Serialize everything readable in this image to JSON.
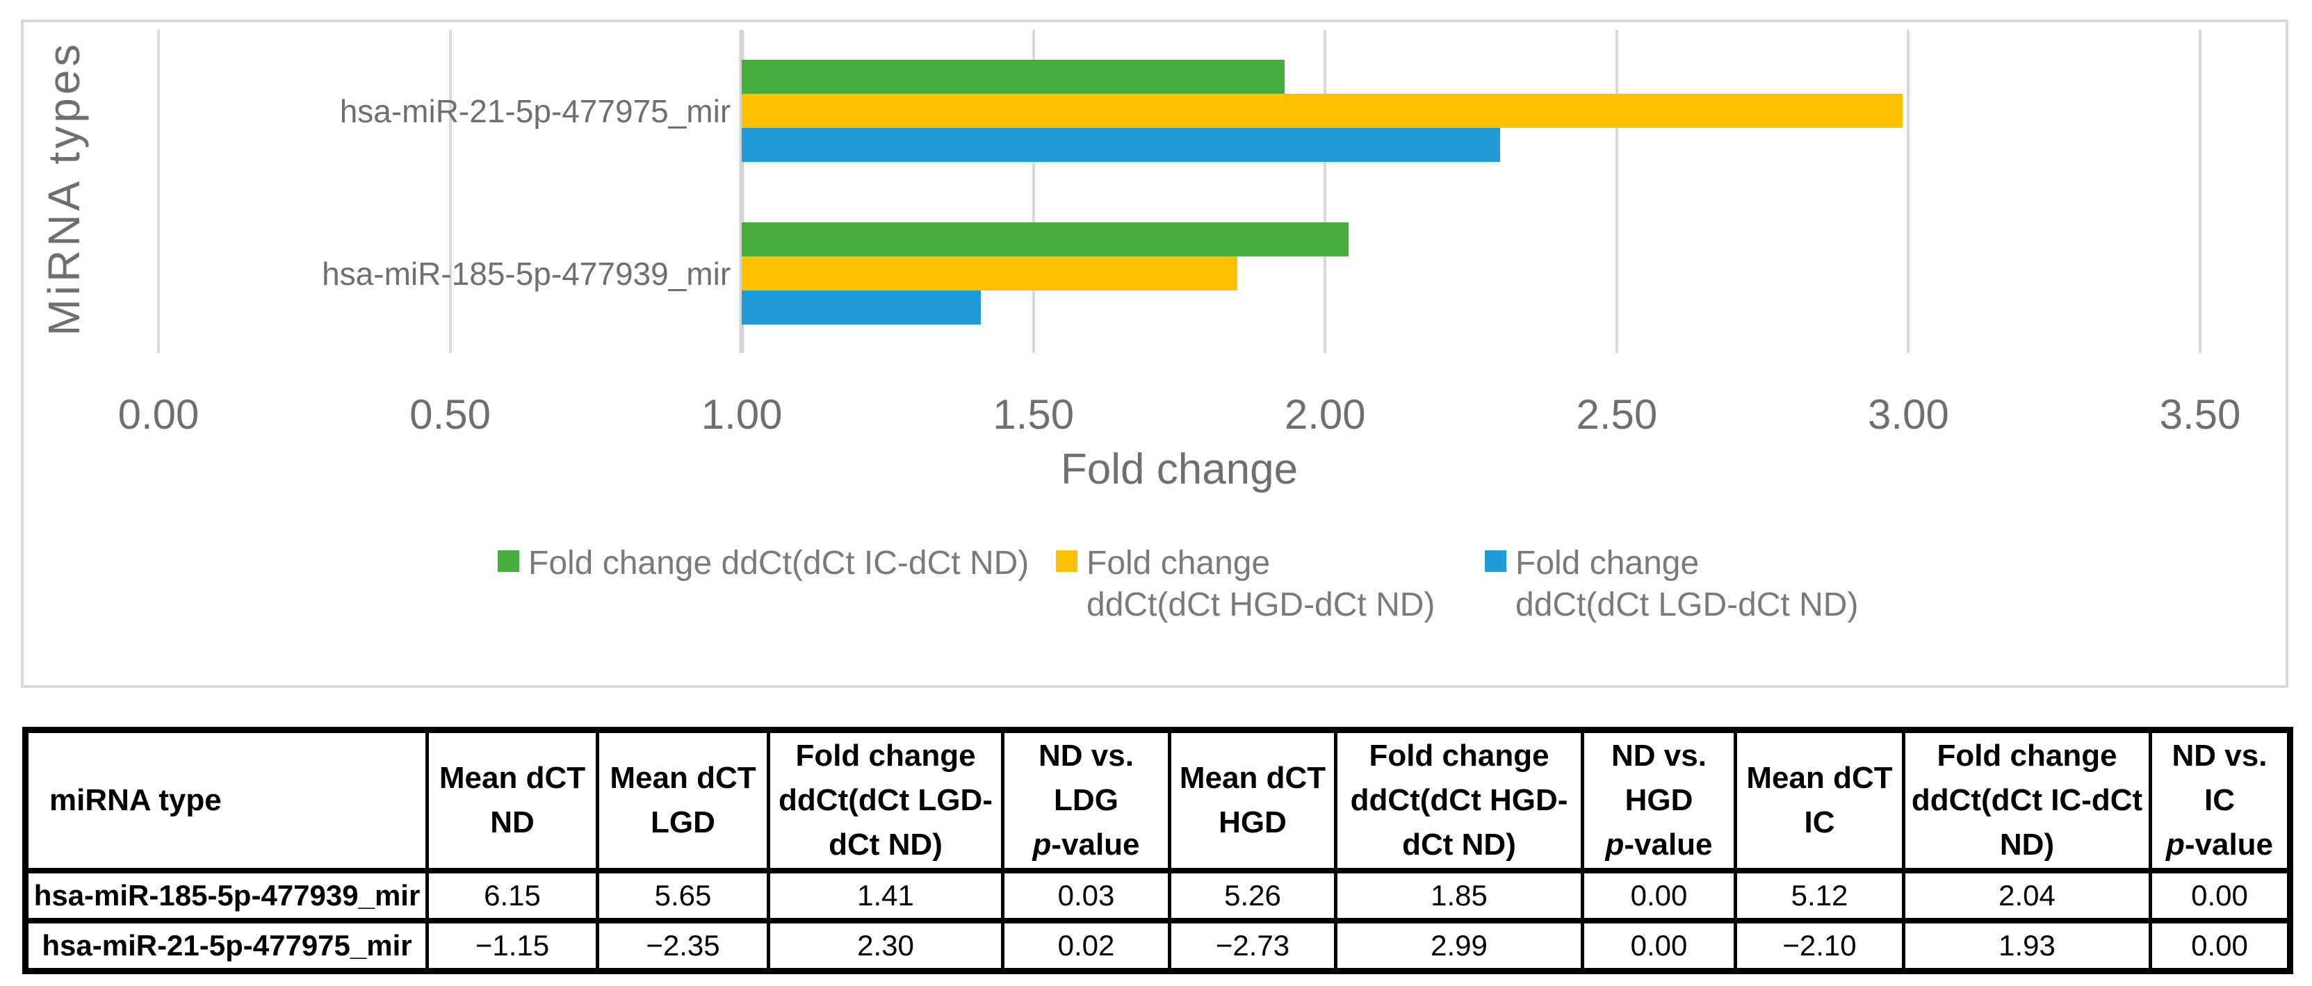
{
  "chart_data": {
    "type": "bar",
    "orientation": "horizontal",
    "title": "",
    "xlabel": "Fold change",
    "ylabel": "MiRNA types",
    "xlim": [
      0,
      3.5
    ],
    "bar_baseline": 1.0,
    "grid_step": 0.5,
    "grid_on": true,
    "tick_labels": [
      "0.00",
      "0.50",
      "1.00",
      "1.50",
      "2.00",
      "2.50",
      "3.00",
      "3.50"
    ],
    "categories": [
      "hsa-miR-21-5p-477975_mir",
      "hsa-miR-185-5p-477939_mir"
    ],
    "series": [
      {
        "name": "Fold change ddCt(dCt IC-dCt ND)",
        "color": "#47AE3D",
        "values": [
          1.93,
          2.04
        ]
      },
      {
        "name": "Fold change ddCt(dCt HGD-dCt ND)",
        "color": "#FFC000",
        "values": [
          2.99,
          1.85
        ]
      },
      {
        "name": "Fold change ddCt(dCt LGD-dCt ND)",
        "color": "#219BD8",
        "values": [
          2.3,
          1.41
        ]
      }
    ],
    "legend": {
      "position": "bottom",
      "entries": [
        {
          "series": 0,
          "lines": [
            "Fold change ddCt(dCt IC-dCt ND)"
          ]
        },
        {
          "series": 1,
          "lines": [
            "Fold change",
            "ddCt(dCt HGD-dCt ND)"
          ]
        },
        {
          "series": 2,
          "lines": [
            "Fold change",
            "ddCt(dCt LGD-dCt ND)"
          ]
        }
      ]
    }
  },
  "table": {
    "header": [
      {
        "lines": [
          "miRNA type"
        ],
        "align": "left"
      },
      {
        "lines": [
          "Mean dCT",
          "ND"
        ]
      },
      {
        "lines": [
          "Mean dCT",
          "LGD"
        ]
      },
      {
        "lines": [
          "Fold change",
          "ddCt(dCt LGD-",
          "dCt ND)"
        ]
      },
      {
        "lines": [
          "ND vs.",
          "LDG",
          "p-value"
        ]
      },
      {
        "lines": [
          "Mean dCT",
          "HGD"
        ]
      },
      {
        "lines": [
          "Fold change",
          "ddCt(dCt HGD-",
          "dCt ND)"
        ]
      },
      {
        "lines": [
          "ND vs.",
          "HGD",
          "p-value"
        ]
      },
      {
        "lines": [
          "Mean dCT",
          "IC"
        ]
      },
      {
        "lines": [
          "Fold change",
          "ddCt(dCt IC-dCt",
          "ND)"
        ]
      },
      {
        "lines": [
          "ND vs. IC",
          "p-value"
        ]
      }
    ],
    "rows": [
      [
        "hsa-miR-185-5p-477939_mir",
        "6.15",
        "5.65",
        "1.41",
        "0.03",
        "5.26",
        "1.85",
        "0.00",
        "5.12",
        "2.04",
        "0.00"
      ],
      [
        "hsa-miR-21-5p-477975_mir",
        "−1.15",
        "−2.35",
        "2.30",
        "0.02",
        "−2.73",
        "2.99",
        "0.00",
        "−2.10",
        "1.93",
        "0.00"
      ]
    ]
  }
}
